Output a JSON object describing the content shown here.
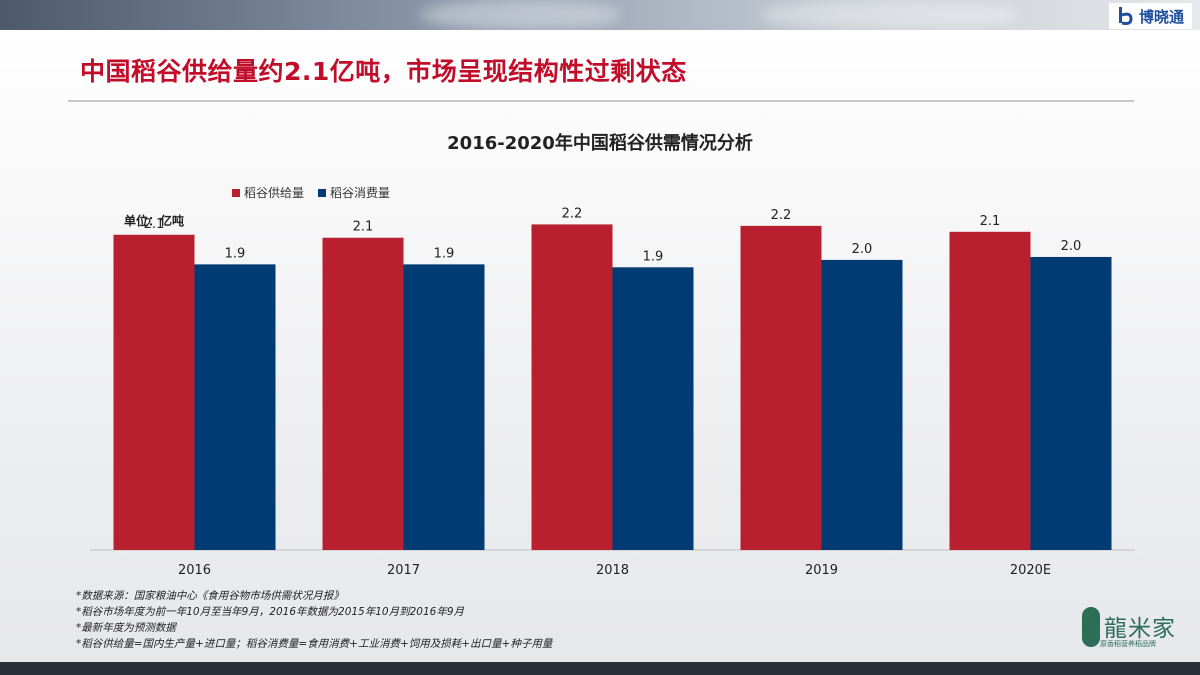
{
  "brand": {
    "name": "博晓通",
    "color": "#1f4e9c"
  },
  "page_title": "中国稻谷供给量约2.1亿吨，市场呈现结构性过剩状态",
  "title_color": "#c00d2a",
  "unit_label": "单位：亿吨",
  "chart_data": {
    "type": "bar",
    "title": "2016-2020年中国稻谷供需情况分析",
    "categories": [
      "2016",
      "2017",
      "2018",
      "2019",
      "2020E"
    ],
    "series": [
      {
        "name": "稻谷供给量",
        "color": "#b8202f",
        "values": [
          2.13,
          2.11,
          2.2,
          2.19,
          2.15
        ],
        "labels": [
          "2.1",
          "2.1",
          "2.2",
          "2.2",
          "2.1"
        ]
      },
      {
        "name": "稻谷消费量",
        "color": "#003b73",
        "values": [
          1.93,
          1.93,
          1.91,
          1.96,
          1.98
        ],
        "labels": [
          "1.9",
          "1.9",
          "1.9",
          "2.0",
          "2.0"
        ]
      }
    ],
    "ylim": [
      0,
      2.5
    ],
    "grid": false,
    "legend_position": "top-left"
  },
  "notes": [
    "*数据来源：国家粮油中心《食用谷物市场供需状况月报》",
    "*稻谷市场年度为前一年10月至当年9月，2016年数据为2015年10月到2016年9月",
    "*最新年度为预测数据",
    "*稻谷供给量=国内生产量+进口量；稻谷消费量=食用消费+工业消费+饲用及损耗+出口量+种子用量"
  ],
  "corner_logo": {
    "name": "龍米家",
    "tagline": "原香稻营养稻品牌"
  }
}
